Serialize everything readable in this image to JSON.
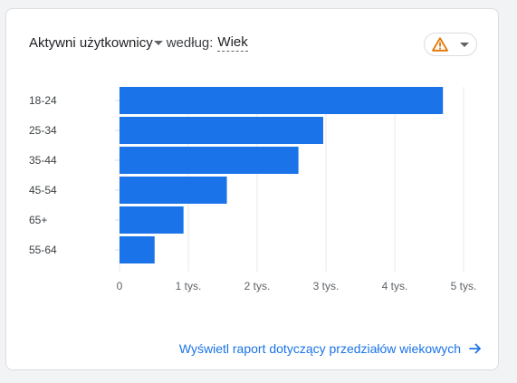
{
  "card": {
    "header": {
      "metric": "Aktywni użytkownicy",
      "by": "według:",
      "dimension": "Wiek"
    },
    "alert": {
      "icon": "warning-triangle-icon",
      "dropdown_icon": "caret-down-icon",
      "icon_color": "#e37400"
    },
    "footer": {
      "link": "Wyświetl raport dotyczący przedziałów wiekowych",
      "icon": "arrow-right-icon"
    }
  },
  "chart_data": {
    "type": "bar",
    "orientation": "horizontal",
    "categories": [
      "18-24",
      "25-34",
      "35-44",
      "45-54",
      "65+",
      "55-64"
    ],
    "values": [
      4700,
      2960,
      2600,
      1560,
      930,
      510
    ],
    "xlim": [
      0,
      5000
    ],
    "xticks": [
      0,
      1000,
      2000,
      3000,
      4000,
      5000
    ],
    "xtick_labels": [
      "0",
      "1 tys.",
      "2 tys.",
      "3 tys.",
      "4 tys.",
      "5 tys."
    ],
    "grid": "vertical",
    "bar_color": "#1a73e8",
    "title": "",
    "xlabel": "",
    "ylabel": ""
  }
}
